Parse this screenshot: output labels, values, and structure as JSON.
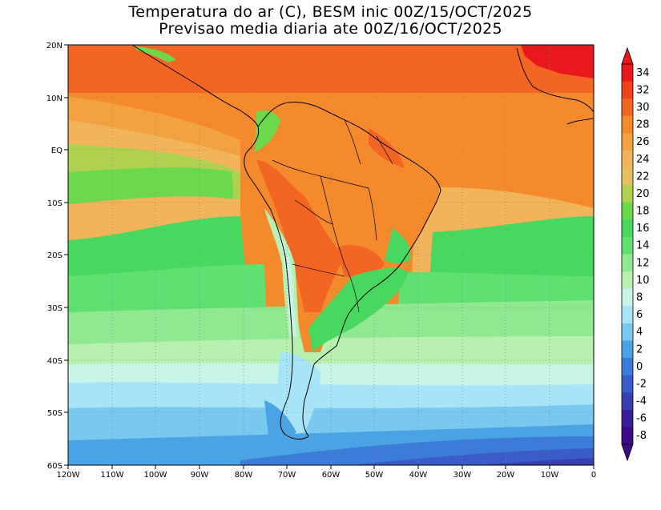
{
  "title": {
    "line1": "Temperatura do ar (C), BESM inic 00Z/15/OCT/2025",
    "line2": "Previsao media diaria ate 00Z/16/OCT/2025"
  },
  "axes": {
    "lat_labels": [
      "20N",
      "10N",
      "EQ",
      "10S",
      "20S",
      "30S",
      "40S",
      "50S",
      "60S"
    ],
    "lon_labels": [
      "120W",
      "110W",
      "100W",
      "90W",
      "80W",
      "70W",
      "60W",
      "50W",
      "40W",
      "30W",
      "20W",
      "10W",
      "0"
    ]
  },
  "colorbar": {
    "labels": [
      "34",
      "32",
      "30",
      "28",
      "26",
      "24",
      "22",
      "20",
      "18",
      "16",
      "14",
      "12",
      "10",
      "8",
      "6",
      "4",
      "2",
      "0",
      "-2",
      "-4",
      "-6",
      "-8"
    ],
    "colors": [
      "#e8181c",
      "#f0401c",
      "#f26522",
      "#f48a2c",
      "#f3a240",
      "#f2b45a",
      "#e6c060",
      "#b0d050",
      "#6cd84c",
      "#48d860",
      "#60e070",
      "#90e890",
      "#b8f0b0",
      "#c8f4e8",
      "#a8e4f8",
      "#78c8f0",
      "#4aa4e4",
      "#3c7cd8",
      "#3a5cc8",
      "#3840b0",
      "#381e98",
      "#3c0a88"
    ]
  },
  "map_colors": {
    "warm_top": "#f26522",
    "hot": "#e8181c",
    "orange": "#f48a2c",
    "orange_light": "#f3a240",
    "sand": "#f2b45a",
    "yellow_green": "#b0d050",
    "green": "#48d860",
    "green_light": "#90e890",
    "mint": "#b8f0b0",
    "cyan_light": "#c8f4e8",
    "sky": "#a8e4f8",
    "blue_light": "#78c8f0",
    "blue": "#4aa4e4",
    "blue_mid": "#3c7cd8",
    "blue_dark": "#3a5cc8",
    "indigo": "#3840b0",
    "violet": "#381e98"
  }
}
